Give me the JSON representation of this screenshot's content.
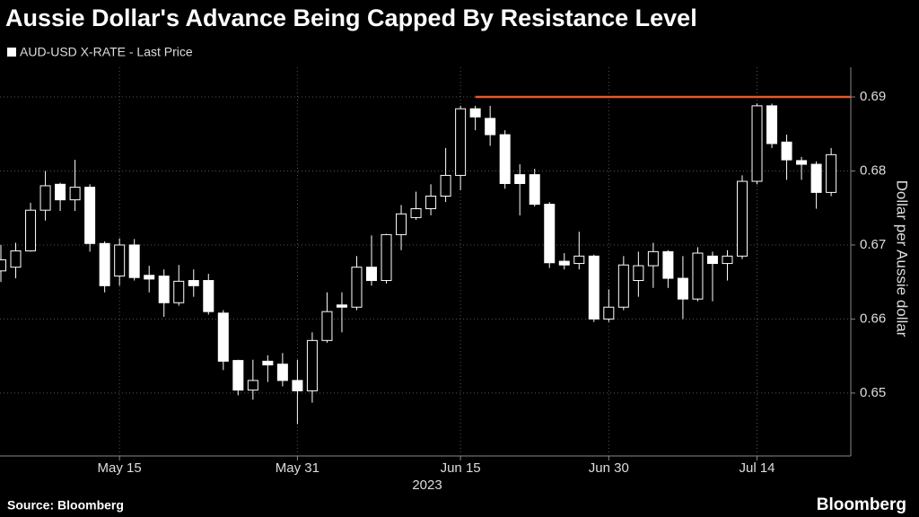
{
  "chart_data": {
    "type": "candlestick",
    "title": "Aussie Dollar's Advance Being Capped By Resistance Level",
    "y_label": "Dollar per Aussie dollar",
    "x_label": "2023",
    "source": "Source: Bloomberg",
    "brand": "Bloomberg",
    "categories": [
      null,
      null,
      null,
      null,
      null,
      null,
      null,
      null,
      "May 15",
      null,
      null,
      null,
      null,
      null,
      null,
      null,
      null,
      null,
      null,
      null,
      "May 31",
      null,
      null,
      null,
      null,
      null,
      null,
      null,
      null,
      null,
      null,
      "Jun 15",
      null,
      null,
      null,
      null,
      null,
      null,
      null,
      null,
      null,
      "Jun 30",
      null,
      null,
      null,
      null,
      null,
      null,
      null,
      null,
      null,
      "Jul 14",
      null,
      null,
      null,
      null,
      null
    ],
    "series": [
      {
        "name": "AUD-USD X-RATE - Last Price",
        "color": "#ffffff",
        "open": [
          0.6665,
          0.667,
          0.6692,
          0.6747,
          0.6782,
          0.6761,
          0.6778,
          0.6702,
          0.6658,
          0.67,
          0.6659,
          0.6658,
          0.6622,
          0.6652,
          0.6652,
          0.6608,
          0.6544,
          0.6504,
          0.6543,
          0.6539,
          0.6517,
          0.6503,
          0.6571,
          0.6619,
          0.6616,
          0.667,
          0.6652,
          0.6714,
          0.6737,
          0.6749,
          0.6766,
          0.6794,
          0.6884,
          0.6871,
          0.6849,
          0.6795,
          0.6795,
          0.6755,
          0.6678,
          0.6675,
          0.6685,
          0.66,
          0.6616,
          0.6652,
          0.6672,
          0.6691,
          0.6655,
          0.6627,
          0.6685,
          0.6675,
          0.6685,
          0.6786,
          0.6888,
          0.6839,
          0.6814,
          0.6809,
          0.6771
        ],
        "high": [
          0.67,
          0.6703,
          0.6757,
          0.68,
          0.6784,
          0.6815,
          0.6782,
          0.6705,
          0.6709,
          0.6708,
          0.6672,
          0.6667,
          0.6673,
          0.6667,
          0.6661,
          0.6612,
          0.6545,
          0.6545,
          0.6551,
          0.6554,
          0.6545,
          0.6582,
          0.6636,
          0.6636,
          0.6685,
          0.6713,
          0.6715,
          0.6754,
          0.6772,
          0.6782,
          0.6831,
          0.6888,
          0.6888,
          0.6888,
          0.6855,
          0.6809,
          0.6803,
          0.6758,
          0.6689,
          0.6718,
          0.6687,
          0.664,
          0.6685,
          0.6691,
          0.6703,
          0.6693,
          0.6685,
          0.6697,
          0.6691,
          0.6693,
          0.6794,
          0.6891,
          0.6891,
          0.6849,
          0.6819,
          0.6813,
          0.6831
        ],
        "low": [
          0.665,
          0.6655,
          0.6691,
          0.6733,
          0.6746,
          0.6746,
          0.6691,
          0.6636,
          0.6645,
          0.6652,
          0.6636,
          0.6603,
          0.6618,
          0.663,
          0.6606,
          0.6531,
          0.6497,
          0.6491,
          0.6515,
          0.6509,
          0.6458,
          0.6487,
          0.6568,
          0.6582,
          0.6612,
          0.6645,
          0.6648,
          0.6693,
          0.6734,
          0.674,
          0.6758,
          0.6774,
          0.6855,
          0.6834,
          0.6776,
          0.674,
          0.6752,
          0.6669,
          0.6667,
          0.6667,
          0.6596,
          0.6596,
          0.6612,
          0.663,
          0.6642,
          0.6642,
          0.66,
          0.6624,
          0.6624,
          0.6652,
          0.6681,
          0.6782,
          0.6831,
          0.6788,
          0.6788,
          0.6749,
          0.6766
        ],
        "close": [
          0.668,
          0.6692,
          0.6747,
          0.678,
          0.6761,
          0.6778,
          0.6702,
          0.6645,
          0.67,
          0.6656,
          0.6654,
          0.6622,
          0.6651,
          0.6645,
          0.661,
          0.6543,
          0.6504,
          0.6517,
          0.6538,
          0.6517,
          0.6503,
          0.6571,
          0.661,
          0.6616,
          0.667,
          0.6652,
          0.6714,
          0.6742,
          0.6749,
          0.6766,
          0.6794,
          0.6884,
          0.6873,
          0.6849,
          0.6783,
          0.6783,
          0.6755,
          0.6676,
          0.6673,
          0.6685,
          0.66,
          0.6616,
          0.6673,
          0.6672,
          0.6691,
          0.6655,
          0.6627,
          0.6689,
          0.6675,
          0.6685,
          0.6786,
          0.6888,
          0.6837,
          0.6815,
          0.6809,
          0.6771,
          0.6822
        ]
      }
    ],
    "resistance": {
      "color": "#e8582a",
      "values": [
        null,
        null,
        null,
        null,
        null,
        null,
        null,
        null,
        null,
        null,
        null,
        null,
        null,
        null,
        null,
        null,
        null,
        null,
        null,
        null,
        null,
        null,
        null,
        null,
        null,
        null,
        null,
        null,
        null,
        null,
        null,
        null,
        0.69,
        0.69,
        0.69,
        0.69,
        0.69,
        0.69,
        0.69,
        0.69,
        0.69,
        0.69,
        0.69,
        0.69,
        0.69,
        0.69,
        0.69,
        0.69,
        0.69,
        0.69,
        0.69,
        0.69,
        0.69,
        0.69,
        0.69,
        0.69,
        0.69
      ]
    },
    "ylim": [
      0.6415,
      0.694
    ],
    "yticks": [
      0.65,
      0.66,
      0.67,
      0.68,
      0.69
    ],
    "grid": true
  }
}
